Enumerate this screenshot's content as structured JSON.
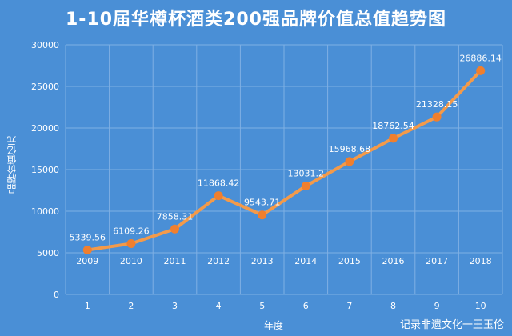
{
  "chart_data": {
    "type": "line",
    "title": "1-10届华樽杯酒类200强品牌价值总值趋势图",
    "xlabel": "年度",
    "ylabel": "品牌价值亿元",
    "x": [
      1,
      2,
      3,
      4,
      5,
      6,
      7,
      8,
      9,
      10
    ],
    "years": [
      "2009",
      "2010",
      "2011",
      "2012",
      "2013",
      "2014",
      "2015",
      "2016",
      "2017",
      "2018"
    ],
    "series": [
      {
        "values": [
          5339.56,
          6109.26,
          7858.31,
          11868.42,
          9543.71,
          13031.2,
          15968.68,
          18762.54,
          21328.15,
          26886.14
        ],
        "labels": [
          "5339.56",
          "6109.26",
          "7858.31",
          "11868.42",
          "9543.71",
          "13031.2",
          "15968.68",
          "18762.54",
          "21328.15",
          "26886.14"
        ]
      }
    ],
    "ylim": [
      0,
      30000
    ],
    "yticks": [
      0,
      5000,
      10000,
      15000,
      20000,
      25000,
      30000
    ],
    "grid": true,
    "colors": {
      "background": "#4a8fd6",
      "line": "#f39a4a",
      "marker": "#f07f2e",
      "grid": "#7fb0e4",
      "text": "#ffffff"
    }
  },
  "watermark": "记录非遗文化一王玉伦"
}
